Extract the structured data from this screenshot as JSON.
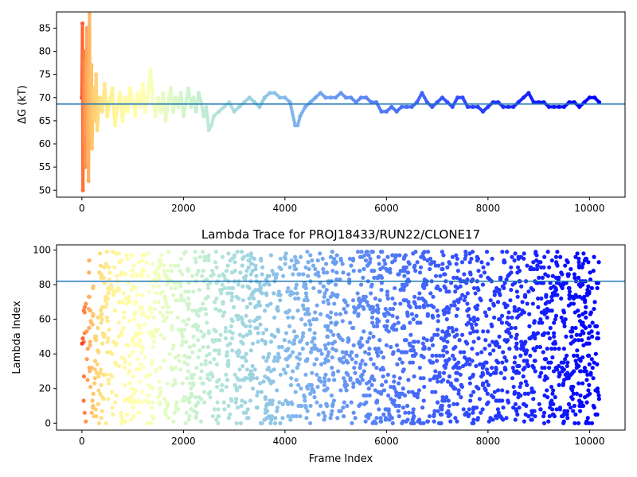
{
  "chart_data": [
    {
      "type": "scatter",
      "title": "",
      "xlabel": "",
      "ylabel": "ΔG (kT)",
      "xlim": [
        -500,
        10700
      ],
      "ylim": [
        48.5,
        88.5
      ],
      "xticks": [
        0,
        2000,
        4000,
        6000,
        8000,
        10000
      ],
      "yticks": [
        50,
        55,
        60,
        65,
        70,
        75,
        80,
        85
      ],
      "colormap": "rainbow (red = earliest frames, violet = latest frames)",
      "hline": {
        "y": 68.6,
        "color": "#1f77b4"
      },
      "grid": false,
      "legend": "none",
      "series": [
        {
          "x": [
            0,
            10,
            20,
            30,
            40,
            50,
            60,
            70,
            80,
            90,
            100,
            110,
            120,
            130,
            140,
            150,
            160,
            170,
            180,
            190,
            200,
            220,
            250,
            280,
            300,
            350,
            400,
            450,
            500,
            550,
            600,
            650,
            700,
            750,
            800,
            850,
            900,
            950,
            1000,
            1050,
            1100,
            1150,
            1200,
            1250,
            1300,
            1350,
            1380,
            1400,
            1450,
            1500,
            1550,
            1600,
            1650,
            1700,
            1750,
            1800,
            1850,
            1900,
            1950,
            2000,
            2050,
            2100,
            2150,
            2200,
            2250,
            2300,
            2350,
            2400,
            2450,
            2500,
            2550,
            2600,
            2700,
            2800,
            2900,
            3000,
            3100,
            3200,
            3300,
            3400,
            3500,
            3600,
            3700,
            3800,
            3900,
            4000,
            4100,
            4200,
            4250,
            4300,
            4400,
            4500,
            4600,
            4700,
            4800,
            4900,
            5000,
            5100,
            5200,
            5300,
            5400,
            5500,
            5600,
            5700,
            5800,
            5900,
            6000,
            6100,
            6200,
            6300,
            6400,
            6500,
            6600,
            6700,
            6800,
            6900,
            7000,
            7100,
            7200,
            7300,
            7400,
            7500,
            7600,
            7700,
            7800,
            7900,
            8000,
            8100,
            8200,
            8300,
            8400,
            8500,
            8600,
            8700,
            8800,
            8900,
            9000,
            9100,
            9200,
            9300,
            9400,
            9500,
            9600,
            9700,
            9800,
            9900,
            10000,
            10100,
            10190
          ],
          "y": [
            70,
            86,
            50,
            80,
            60,
            73,
            55,
            78,
            62,
            66,
            85,
            58,
            76,
            52,
            68,
            88,
            61,
            74,
            64,
            77,
            59,
            72,
            65,
            75,
            63,
            70,
            67,
            73,
            66,
            69,
            72,
            64,
            68,
            71,
            65,
            70,
            67,
            72,
            69,
            66,
            71,
            68,
            73,
            67,
            70,
            76,
            72,
            69,
            66,
            70,
            67,
            71,
            65,
            69,
            72,
            67,
            70,
            68,
            71,
            66,
            69,
            72,
            68,
            70,
            67,
            71,
            69,
            66,
            68,
            63,
            64,
            66,
            67,
            68,
            69,
            67,
            68,
            69,
            70,
            69,
            68,
            70,
            71,
            71,
            70,
            70,
            69,
            64,
            64,
            66,
            68,
            69,
            70,
            71,
            70,
            70,
            70,
            71,
            70,
            70,
            69,
            70,
            70,
            69,
            69,
            67,
            67,
            68,
            67,
            68,
            68,
            68,
            69,
            71,
            69,
            68,
            69,
            70,
            69,
            68,
            70,
            70,
            68,
            68,
            68,
            67,
            68,
            69,
            69,
            68,
            68,
            68,
            69,
            70,
            71,
            69,
            69,
            69,
            68,
            68,
            68,
            68,
            69,
            69,
            68,
            69,
            70,
            70,
            69
          ]
        }
      ]
    },
    {
      "type": "scatter",
      "title": "Lambda Trace for PROJ18433/RUN22/CLONE17",
      "xlabel": "Frame Index",
      "ylabel": "Lambda Index",
      "xlim": [
        -500,
        10700
      ],
      "ylim": [
        -4,
        103
      ],
      "xticks": [
        0,
        2000,
        4000,
        6000,
        8000,
        10000
      ],
      "yticks": [
        0,
        20,
        40,
        60,
        80,
        100
      ],
      "colormap": "rainbow (red = earliest frames, violet = latest frames)",
      "hline": {
        "y": 82,
        "color": "#1f77b4"
      },
      "grid": false,
      "legend": "none",
      "series": [
        {
          "x_range": [
            0,
            10190
          ],
          "y_range": [
            0,
            99
          ],
          "description": "dense scatter of lambda index per frame, uniformly covering indices 0-99 across all frames with vertical streaks"
        }
      ]
    }
  ]
}
